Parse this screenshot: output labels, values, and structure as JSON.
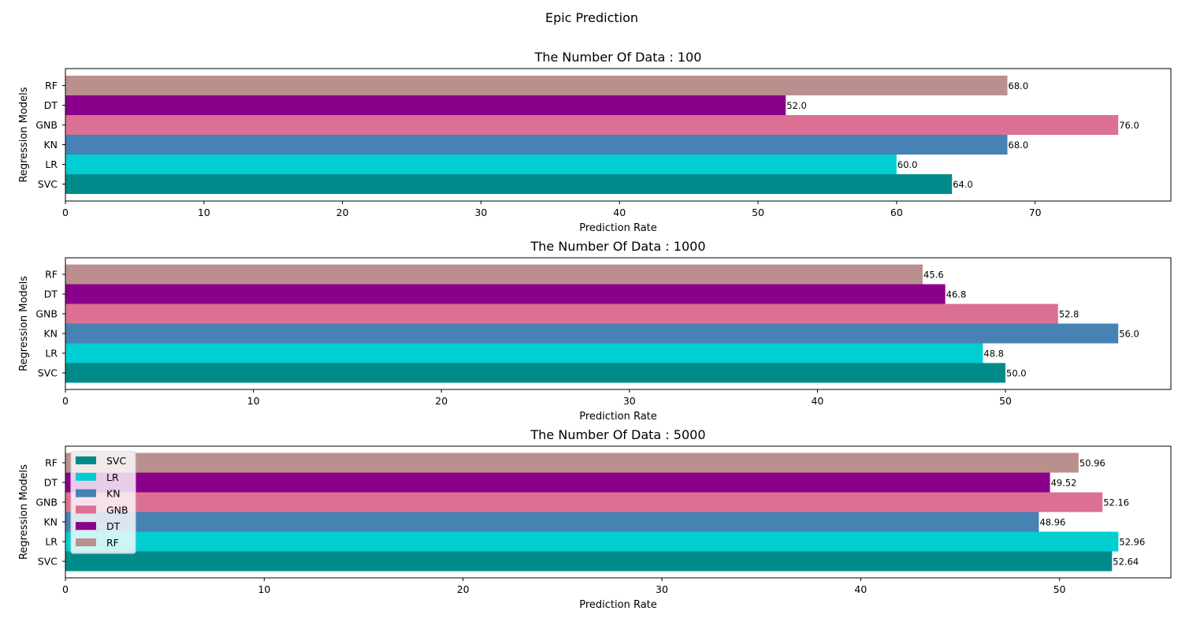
{
  "suptitle": "Epic Prediction",
  "chart_data": [
    {
      "type": "bar",
      "orientation": "horizontal",
      "title": "The Number Of Data : 100",
      "xlabel": "Prediction Rate",
      "ylabel": "Regression Models",
      "categories": [
        "SVC",
        "LR",
        "KN",
        "GNB",
        "DT",
        "RF"
      ],
      "values": [
        64.0,
        60.0,
        68.0,
        76.0,
        52.0,
        68.0
      ],
      "value_labels": [
        "64.0",
        "60.0",
        "68.0",
        "76.0",
        "52.0",
        "68.0"
      ],
      "xlim": [
        0,
        79.8
      ],
      "xticks": [
        0,
        10,
        20,
        30,
        40,
        50,
        60,
        70
      ],
      "grid": false,
      "legend": false
    },
    {
      "type": "bar",
      "orientation": "horizontal",
      "title": "The Number Of Data : 1000",
      "xlabel": "Prediction Rate",
      "ylabel": "Regression Models",
      "categories": [
        "SVC",
        "LR",
        "KN",
        "GNB",
        "DT",
        "RF"
      ],
      "values": [
        50.0,
        48.8,
        56.0,
        52.8,
        46.8,
        45.6
      ],
      "value_labels": [
        "50.0",
        "48.8",
        "56.0",
        "52.8",
        "46.8",
        "45.6"
      ],
      "xlim": [
        0,
        58.8
      ],
      "xticks": [
        0,
        10,
        20,
        30,
        40,
        50
      ],
      "grid": false,
      "legend": false
    },
    {
      "type": "bar",
      "orientation": "horizontal",
      "title": "The Number Of Data : 5000",
      "xlabel": "Prediction Rate",
      "ylabel": "Regression Models",
      "categories": [
        "SVC",
        "LR",
        "KN",
        "GNB",
        "DT",
        "RF"
      ],
      "values": [
        52.64,
        52.96,
        48.96,
        52.16,
        49.52,
        50.96
      ],
      "value_labels": [
        "52.64",
        "52.96",
        "48.96",
        "52.16",
        "49.52",
        "50.96"
      ],
      "xlim": [
        0,
        55.6
      ],
      "xticks": [
        0,
        10,
        20,
        30,
        40,
        50
      ],
      "grid": false,
      "legend": true,
      "legend_position": "upper-left"
    }
  ],
  "legend_items": [
    "SVC",
    "LR",
    "KN",
    "GNB",
    "DT",
    "RF"
  ],
  "colors": {
    "SVC": "#008B8A",
    "LR": "#00CED1",
    "KN": "#4682B4",
    "GNB": "#DB7093",
    "DT": "#8B008B",
    "RF": "#BC8F8F"
  }
}
